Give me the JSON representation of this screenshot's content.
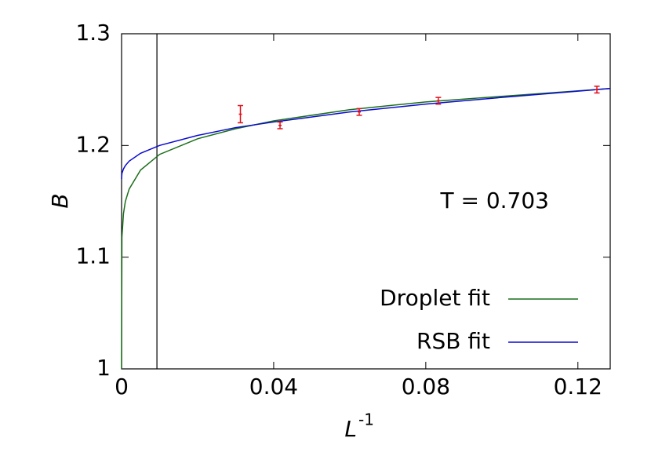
{
  "chart_data": {
    "type": "line",
    "xlabel": "L",
    "xlabel_superscript": "-1",
    "ylabel": "B",
    "annotation": "T = 0.703",
    "xlim": [
      0,
      0.1285
    ],
    "ylim": [
      1,
      1.3
    ],
    "xticks": [
      0,
      0.04,
      0.08,
      0.12
    ],
    "yticks": [
      1,
      1.1,
      1.2,
      1.3
    ],
    "vline": 0.0093,
    "legend": "lower right",
    "series": [
      {
        "name": "Droplet fit",
        "color": "#1a6e1a",
        "x": [
          0,
          0.0001,
          0.0005,
          0.001,
          0.002,
          0.005,
          0.01,
          0.02,
          0.03,
          0.04,
          0.06,
          0.08,
          0.1,
          0.1285
        ],
        "values": [
          1.0,
          1.118,
          1.139,
          1.15,
          1.161,
          1.178,
          1.192,
          1.206,
          1.215,
          1.222,
          1.232,
          1.239,
          1.244,
          1.251
        ]
      },
      {
        "name": "RSB fit",
        "color": "#0a0ad0",
        "x": [
          0,
          0.0001,
          0.0005,
          0.001,
          0.002,
          0.005,
          0.01,
          0.02,
          0.03,
          0.04,
          0.06,
          0.08,
          0.1,
          0.1285
        ],
        "values": [
          1.17,
          1.175,
          1.179,
          1.182,
          1.186,
          1.193,
          1.2,
          1.209,
          1.216,
          1.221,
          1.23,
          1.237,
          1.243,
          1.251
        ]
      }
    ],
    "points": {
      "color": "#e0101a",
      "x": [
        0.03125,
        0.04167,
        0.0625,
        0.0833,
        0.125
      ],
      "values": [
        1.228,
        1.218,
        1.23,
        1.24,
        1.25
      ],
      "errors": [
        0.0077,
        0.003,
        0.003,
        0.003,
        0.003
      ]
    }
  }
}
